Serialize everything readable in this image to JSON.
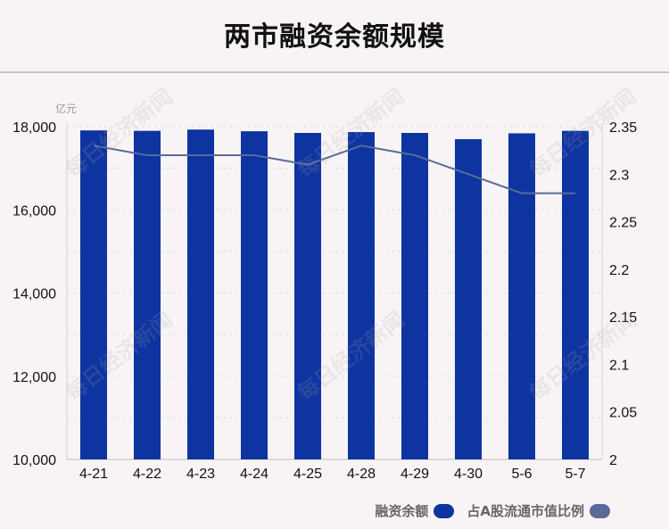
{
  "title": "两市融资余额规模",
  "watermark_text": "每日经济新闻",
  "colors": {
    "bar": "#0d34a0",
    "line": "#5a6b9a",
    "axis_text": "#111111",
    "unit_text": "#999999",
    "grid": "#dddddd"
  },
  "chart_data": {
    "type": "bar+line",
    "unit_label": "亿元",
    "categories": [
      "4-21",
      "4-22",
      "4-23",
      "4-24",
      "4-25",
      "4-28",
      "4-29",
      "4-30",
      "5-6",
      "5-7"
    ],
    "series": [
      {
        "name": "融资余额",
        "type": "bar",
        "axis": "left",
        "values": [
          17910,
          17900,
          17930,
          17890,
          17850,
          17870,
          17850,
          17700,
          17840,
          17900
        ]
      },
      {
        "name": "占A股流通市值比例",
        "type": "line",
        "axis": "right",
        "values": [
          2.33,
          2.32,
          2.32,
          2.32,
          2.31,
          2.33,
          2.32,
          2.3,
          2.28,
          2.28
        ]
      }
    ],
    "left_axis": {
      "ylim": [
        10000,
        18000
      ],
      "ticks": [
        10000,
        12000,
        14000,
        16000,
        18000
      ],
      "tick_labels": [
        "10,000",
        "12,000",
        "14,000",
        "16,000",
        "18,000"
      ]
    },
    "right_axis": {
      "ylim": [
        2,
        2.35
      ],
      "ticks": [
        2,
        2.05,
        2.1,
        2.15,
        2.2,
        2.25,
        2.3,
        2.35
      ],
      "tick_labels": [
        "2",
        "2.05",
        "2.1",
        "2.15",
        "2.2",
        "2.25",
        "2.3",
        "2.35"
      ]
    },
    "grid": true,
    "legend_position": "bottom-right"
  },
  "legend": [
    {
      "label": "融资余额",
      "color": "#0d34a0"
    },
    {
      "label": "占A股流通市值比例",
      "color": "#5a6b9a"
    }
  ]
}
